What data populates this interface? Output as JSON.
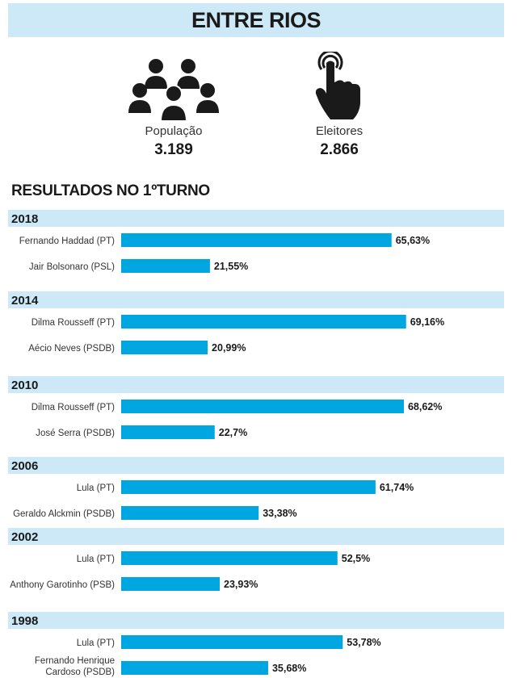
{
  "header": {
    "title": "ENTRE RIOS"
  },
  "stats": {
    "population": {
      "label": "População",
      "value": "3.189",
      "icon": "people-group-icon"
    },
    "voters": {
      "label": "Eleitores",
      "value": "2.866",
      "icon": "finger-tap-icon"
    }
  },
  "section": {
    "title": "RESULTADOS NO 1ºTURNO"
  },
  "colors": {
    "bar": "#00a6e0",
    "year_band": "#cde9f8",
    "text": "#1a1a1a"
  },
  "chart_data": {
    "type": "bar",
    "orientation": "horizontal",
    "unit": "%",
    "groups": [
      {
        "year": "2018",
        "entries": [
          {
            "name": "Fernando Haddad (PT)",
            "value": 65.63,
            "label": "65,63%"
          },
          {
            "name": "Jair Bolsonaro (PSL)",
            "value": 21.55,
            "label": "21,55%"
          }
        ]
      },
      {
        "year": "2014",
        "entries": [
          {
            "name": "Dilma Rousseff (PT)",
            "value": 69.16,
            "label": "69,16%"
          },
          {
            "name": "Aécio Neves (PSDB)",
            "value": 20.99,
            "label": "20,99%"
          }
        ]
      },
      {
        "year": "2010",
        "entries": [
          {
            "name": "Dilma Rousseff (PT)",
            "value": 68.62,
            "label": "68,62%"
          },
          {
            "name": "José Serra (PSDB)",
            "value": 22.7,
            "label": "22,7%"
          }
        ]
      },
      {
        "year": "2006",
        "entries": [
          {
            "name": "Lula (PT)",
            "value": 61.74,
            "label": "61,74%"
          },
          {
            "name": "Geraldo Alckmin (PSDB)",
            "value": 33.38,
            "label": "33,38%"
          }
        ]
      },
      {
        "year": "2002",
        "entries": [
          {
            "name": "Lula (PT)",
            "value": 52.5,
            "label": "52,5%"
          },
          {
            "name": "Anthony Garotinho (PSB)",
            "value": 23.93,
            "label": "23,93%"
          }
        ]
      },
      {
        "year": "1998",
        "entries": [
          {
            "name": "Lula (PT)",
            "value": 53.78,
            "label": "53,78%"
          },
          {
            "name": "Fernando Henrique\nCardoso (PSDB)",
            "value": 35.68,
            "label": "35,68%"
          }
        ]
      }
    ]
  }
}
